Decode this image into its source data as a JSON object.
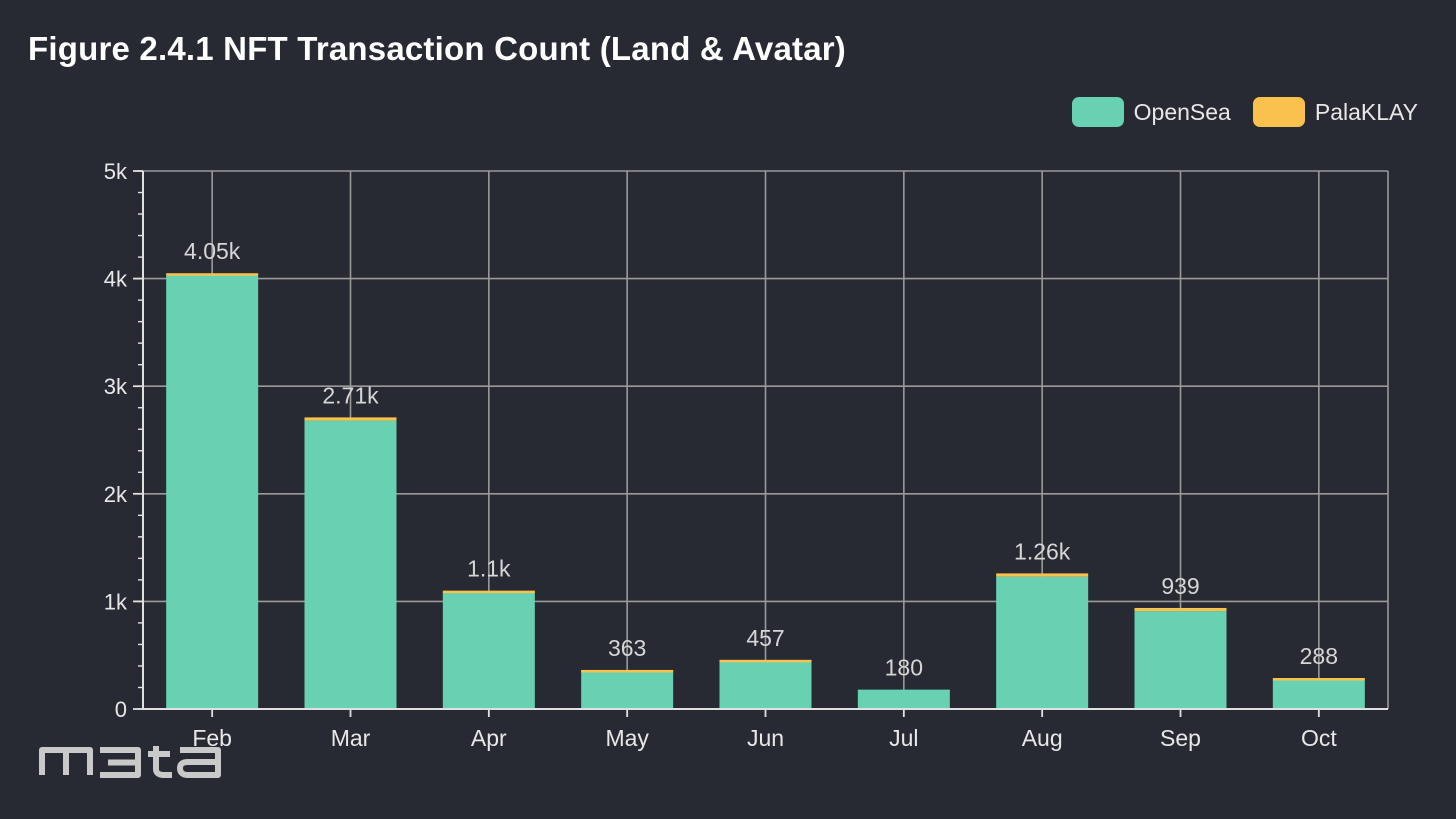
{
  "title": "Figure 2.4.1 NFT Transaction Count (Land & Avatar)",
  "watermark_text": "m3ta",
  "colors": {
    "background": "#272a33",
    "grid": "#9a9a9a",
    "axis": "#e0e0e0",
    "label": "#d6d6d6"
  },
  "chart_data": {
    "type": "bar",
    "stacked": true,
    "title": "Figure 2.4.1 NFT Transaction Count (Land & Avatar)",
    "xlabel": "",
    "ylabel": "",
    "categories": [
      "Feb",
      "Mar",
      "Apr",
      "May",
      "Jun",
      "Jul",
      "Aug",
      "Sep",
      "Oct"
    ],
    "series": [
      {
        "name": "OpenSea",
        "color": "#68d1b1",
        "values": [
          4030,
          2680,
          1090,
          360,
          450,
          180,
          1230,
          910,
          265
        ]
      },
      {
        "name": "PalaKLAY",
        "color": "#fbc14f",
        "values": [
          20,
          30,
          10,
          3,
          7,
          0,
          30,
          29,
          23
        ]
      }
    ],
    "totals": [
      4050,
      2710,
      1100,
      363,
      457,
      180,
      1260,
      939,
      288
    ],
    "total_labels": [
      "4.05k",
      "2.71k",
      "1.1k",
      "363",
      "457",
      "180",
      "1.26k",
      "939",
      "288"
    ],
    "ylim": [
      0,
      5000
    ],
    "yticks": [
      0,
      1000,
      2000,
      3000,
      4000,
      5000
    ],
    "ytick_labels": [
      "0",
      "1k",
      "2k",
      "3k",
      "4k",
      "5k"
    ],
    "grid": true,
    "legend_position": "top-right"
  }
}
